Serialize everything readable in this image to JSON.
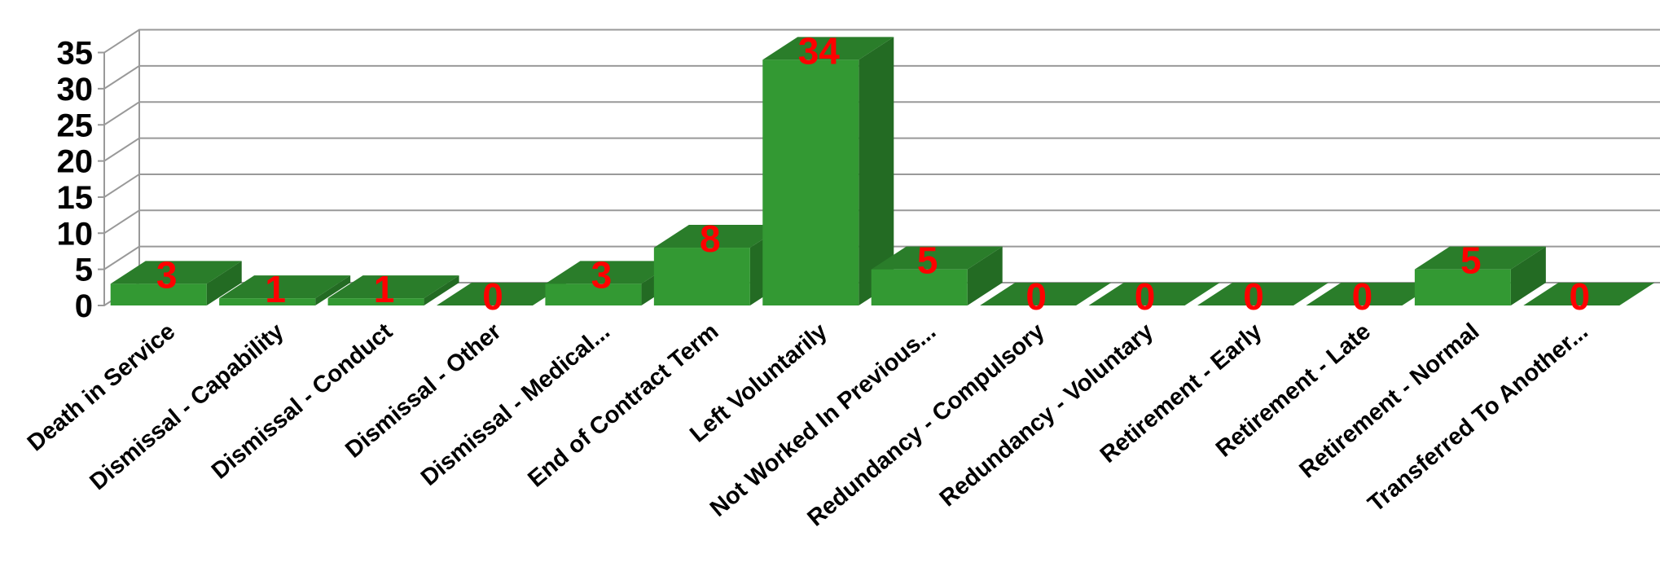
{
  "chart_data": {
    "type": "bar",
    "categories": [
      "Death in Service",
      "Dismissal - Capability",
      "Dismissal - Conduct",
      "Dismissal - Other",
      "Dismissal - Medical...",
      "End of Contract Term",
      "Left Voluntarily",
      "Not Worked In Previous...",
      "Redundancy - Compulsory",
      "Redundancy - Voluntary",
      "Retirement - Early",
      "Retirement - Late",
      "Retirement - Normal",
      "Transferred To Another..."
    ],
    "values": [
      3,
      1,
      1,
      0,
      3,
      8,
      34,
      5,
      0,
      0,
      0,
      0,
      5,
      0
    ],
    "data_labels": [
      "3",
      "1",
      "1",
      "0",
      "3",
      "8",
      "34",
      "5",
      "0",
      "0",
      "0",
      "0",
      "5",
      "0"
    ],
    "yticks": [
      "0",
      "5",
      "10",
      "15",
      "20",
      "25",
      "30",
      "35"
    ],
    "ylim": [
      0,
      38
    ],
    "grid": true,
    "title": "",
    "xlabel": "",
    "ylabel": "",
    "colors": {
      "bar_front": "#339933",
      "bar_side": "#236b23",
      "bar_top": "#2a7d2a",
      "label": "#ff0000",
      "grid": "#999999"
    }
  }
}
